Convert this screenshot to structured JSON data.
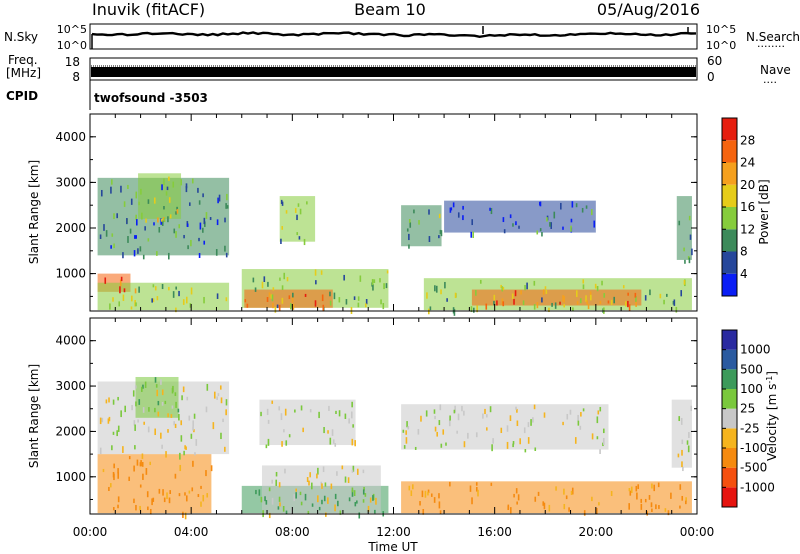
{
  "header": {
    "title_left": "Inuvik (fitACF)",
    "title_center": "Beam 10",
    "title_right": "05/Aug/2016"
  },
  "panels": {
    "nsky_label": "N.Sky",
    "nsearch_label": "N.Search",
    "nsky_ticks": [
      "10^5",
      "10^0"
    ],
    "nsearch_ticks": [
      "10^5",
      "10^0"
    ],
    "freq_label": "Freq.",
    "freq_unit": "[MHz]",
    "freq_ticks": [
      "18",
      "8"
    ],
    "nave_label": "Nave",
    "nave_ticks": [
      "60",
      "0"
    ],
    "cpid_label": "CPID",
    "cpid_value": "twofsound -3503"
  },
  "axes": {
    "ylabel": "Slant Range [km]",
    "xlabel": "Time UT",
    "yticks": [
      "4000",
      "3000",
      "2000",
      "1000"
    ],
    "xticks": [
      "00:00",
      "04:00",
      "08:00",
      "12:00",
      "16:00",
      "20:00",
      "00:00"
    ]
  },
  "colors": {
    "power": [
      "#0a1ef5",
      "#26479b",
      "#3c8a5a",
      "#86cc3c",
      "#e6cc1a",
      "#f5a01e",
      "#f5640f",
      "#e61e0f"
    ],
    "velocity": [
      "#e6140f",
      "#f5500f",
      "#f58a0f",
      "#f5b41e",
      "#c8c8c8",
      "#7ac83c",
      "#3c9a5a",
      "#2a5aa0",
      "#2a2aa0"
    ],
    "ground_scatter": "#c0c0c0"
  },
  "chart_data": [
    {
      "type": "heatmap",
      "name": "power",
      "title": "Beam 10",
      "xlabel": "Time UT",
      "ylabel": "Slant Range [km]",
      "xlim": [
        "00:00",
        "24:00"
      ],
      "ylim": [
        180,
        4500
      ],
      "colorbar": {
        "label": "Power [dB]",
        "range": [
          0,
          32
        ],
        "ticks": [
          "28",
          "24",
          "20",
          "16",
          "12",
          "8",
          "4"
        ]
      },
      "regions": [
        {
          "t0": 0.3,
          "t1": 1.6,
          "r0": 600,
          "r1": 1000,
          "value": 27
        },
        {
          "t0": 0.3,
          "t1": 5.5,
          "r0": 200,
          "r1": 800,
          "value": 14
        },
        {
          "t0": 0.3,
          "t1": 5.5,
          "r0": 1400,
          "r1": 3100,
          "value": 9
        },
        {
          "t0": 1.9,
          "t1": 3.6,
          "r0": 2200,
          "r1": 3200,
          "value": 15
        },
        {
          "t0": 6.0,
          "t1": 11.8,
          "r0": 250,
          "r1": 1100,
          "value": 12
        },
        {
          "t0": 6.1,
          "t1": 9.6,
          "r0": 250,
          "r1": 650,
          "value": 26
        },
        {
          "t0": 7.5,
          "t1": 8.9,
          "r0": 1700,
          "r1": 2700,
          "value": 12
        },
        {
          "t0": 12.3,
          "t1": 13.9,
          "r0": 1600,
          "r1": 2500,
          "value": 11
        },
        {
          "t0": 13.2,
          "t1": 23.8,
          "r0": 200,
          "r1": 900,
          "value": 14
        },
        {
          "t0": 15.1,
          "t1": 21.8,
          "r0": 300,
          "r1": 650,
          "value": 26
        },
        {
          "t0": 14.0,
          "t1": 20.0,
          "r0": 1900,
          "r1": 2600,
          "value": 7
        },
        {
          "t0": 23.2,
          "t1": 23.8,
          "r0": 1300,
          "r1": 2700,
          "value": 8
        }
      ]
    },
    {
      "type": "heatmap",
      "name": "velocity",
      "xlabel": "Time UT",
      "ylabel": "Slant Range [km]",
      "xlim": [
        "00:00",
        "24:00"
      ],
      "ylim": [
        180,
        4500
      ],
      "colorbar": {
        "label": "Velocity [m s^-1]",
        "ticks": [
          "1000",
          "500",
          "100",
          "25",
          "-25",
          "-100",
          "-500",
          "-1000"
        ]
      },
      "regions": [
        {
          "t0": 0.3,
          "t1": 4.8,
          "r0": 200,
          "r1": 1500,
          "value": -150
        },
        {
          "t0": 0.3,
          "t1": 5.5,
          "r0": 1500,
          "r1": 3100,
          "value": 0
        },
        {
          "t0": 1.8,
          "t1": 3.5,
          "r0": 2300,
          "r1": 3200,
          "value": 100
        },
        {
          "t0": 6.0,
          "t1": 11.8,
          "r0": 200,
          "r1": 800,
          "value": 150
        },
        {
          "t0": 6.8,
          "t1": 11.5,
          "r0": 200,
          "r1": 1250,
          "value": 0
        },
        {
          "t0": 6.7,
          "t1": 10.5,
          "r0": 1700,
          "r1": 2700,
          "value": 0
        },
        {
          "t0": 12.3,
          "t1": 23.8,
          "r0": 200,
          "r1": 900,
          "value": -150
        },
        {
          "t0": 12.3,
          "t1": 20.5,
          "r0": 1600,
          "r1": 2600,
          "value": 0
        },
        {
          "t0": 23.0,
          "t1": 23.8,
          "r0": 1200,
          "r1": 2700,
          "value": 0
        }
      ]
    }
  ]
}
